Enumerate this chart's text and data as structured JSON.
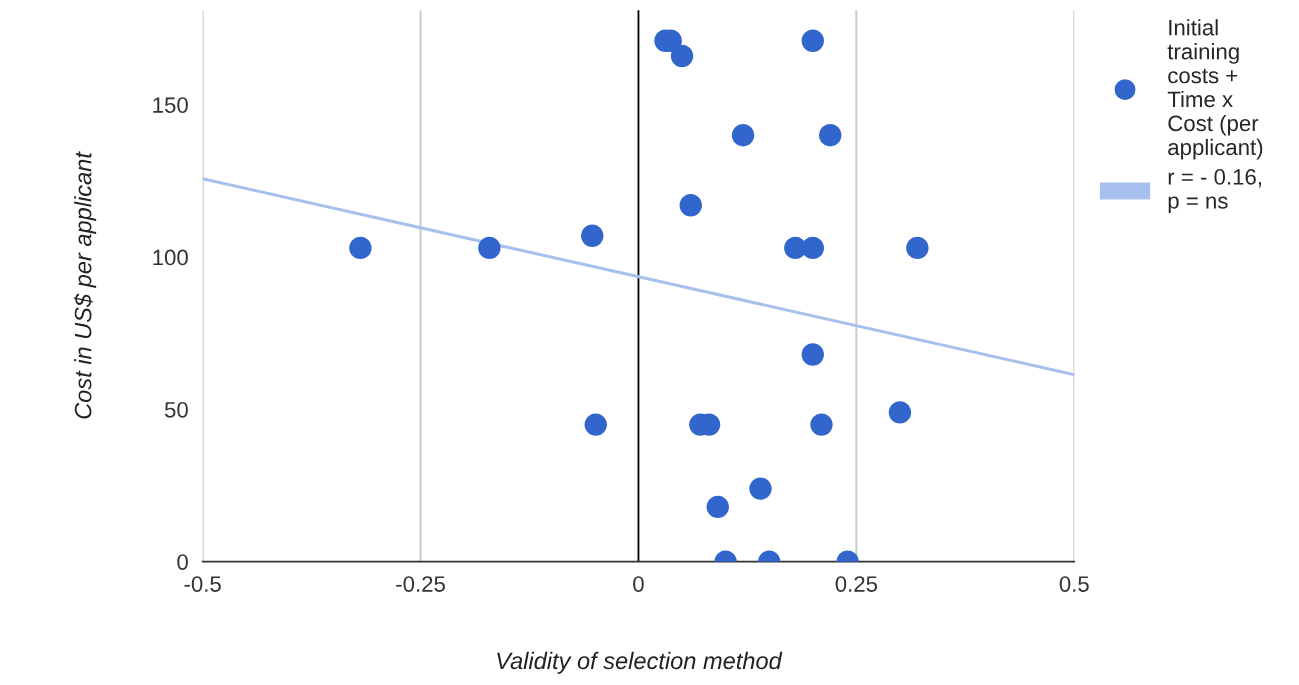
{
  "chart_data": {
    "type": "scatter",
    "xlabel": "Validity of selection method",
    "ylabel": "Cost in US$ per applicant",
    "series": [
      {
        "name": "Initial training costs + Time x Cost (per applicant)",
        "color": "#3366cc",
        "marker": "circle",
        "x": [
          0.031,
          0.037,
          0.05,
          0.2,
          0.12,
          0.22,
          0.06,
          -0.319,
          -0.171,
          -0.053,
          0.18,
          0.2,
          0.32,
          0.2,
          0.3,
          -0.049,
          0.071,
          0.081,
          0.21,
          0.14,
          0.091,
          0.1,
          0.15,
          0.24
        ],
        "values": [
          171,
          171,
          166,
          171,
          140,
          140,
          117,
          103,
          103,
          107,
          103,
          103,
          103,
          68,
          49,
          45,
          45,
          45,
          45,
          24,
          18,
          0,
          0,
          0
        ]
      },
      {
        "name": "r = - 0.16, p = ns",
        "type": "line",
        "color": "#a8c0ee",
        "x": [
          -0.5,
          0.5
        ],
        "values": [
          125.7,
          61.4
        ]
      }
    ],
    "xlim": [
      -0.5,
      0.5
    ],
    "xticks": [
      -0.5,
      -0.25,
      0,
      0.25,
      0.5
    ],
    "ylim": [
      0,
      181
    ],
    "yticks": [
      0,
      50,
      100,
      150
    ],
    "ref_lines": [
      {
        "axis": "x",
        "value": 0,
        "color": "#000000"
      }
    ],
    "grid": "x",
    "legend": "right"
  }
}
